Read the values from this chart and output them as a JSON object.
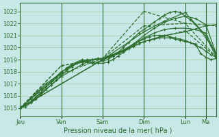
{
  "bg_color": "#c8e8e8",
  "grid_color": "#a0c8a0",
  "line_color": "#2d6e2d",
  "xlabel": "Pression niveau de la mer( hPa )",
  "ylim": [
    1014.3,
    1023.7
  ],
  "yticks": [
    1015,
    1016,
    1017,
    1018,
    1019,
    1020,
    1021,
    1022,
    1023
  ],
  "xtick_labels": [
    "Jeu",
    "Ven",
    "Sam",
    "Dim",
    "Lun",
    "Ma"
  ],
  "xtick_positions": [
    0,
    24,
    48,
    72,
    96,
    108
  ],
  "total_hours": 114,
  "series": [
    {
      "x": [
        0,
        3,
        6,
        9,
        12,
        15,
        18,
        21,
        24,
        27,
        30,
        33,
        36,
        39,
        42,
        45,
        48,
        51,
        54,
        57,
        60,
        63,
        66,
        69,
        72,
        75,
        78,
        81,
        84,
        87,
        90,
        93,
        96,
        99,
        102,
        105,
        108,
        111,
        114
      ],
      "y": [
        1015.0,
        1015.3,
        1015.8,
        1016.2,
        1016.6,
        1017.0,
        1017.3,
        1017.6,
        1018.0,
        1018.2,
        1018.5,
        1018.7,
        1018.9,
        1019.0,
        1019.0,
        1019.1,
        1019.1,
        1019.2,
        1019.3,
        1019.5,
        1019.7,
        1019.9,
        1020.1,
        1020.3,
        1020.5,
        1020.6,
        1020.7,
        1020.8,
        1020.8,
        1020.8,
        1020.7,
        1020.6,
        1020.5,
        1020.4,
        1020.3,
        1019.5,
        1019.2,
        1019.0,
        1019.1
      ],
      "dashed": false
    },
    {
      "x": [
        0,
        6,
        12,
        18,
        24,
        30,
        36,
        42,
        48,
        54,
        60,
        66,
        72,
        78,
        84,
        90,
        96,
        102,
        108,
        114
      ],
      "y": [
        1015.0,
        1015.5,
        1016.2,
        1016.9,
        1017.6,
        1018.1,
        1018.6,
        1019.0,
        1019.1,
        1019.4,
        1019.8,
        1020.3,
        1020.8,
        1021.2,
        1021.5,
        1021.6,
        1021.6,
        1021.5,
        1021.2,
        1019.4
      ],
      "dashed": false
    },
    {
      "x": [
        0,
        6,
        12,
        18,
        24,
        30,
        36,
        42,
        48,
        54,
        60,
        66,
        72,
        78,
        84,
        90,
        96,
        102,
        108,
        114
      ],
      "y": [
        1015.0,
        1015.7,
        1016.5,
        1017.2,
        1018.0,
        1018.5,
        1018.8,
        1019.0,
        1019.0,
        1019.3,
        1019.7,
        1020.3,
        1021.0,
        1021.6,
        1022.1,
        1022.4,
        1022.6,
        1022.4,
        1021.9,
        1019.5
      ],
      "dashed": false
    },
    {
      "x": [
        0,
        48,
        72,
        84,
        96,
        108,
        114
      ],
      "y": [
        1015.0,
        1019.0,
        1020.5,
        1021.0,
        1021.3,
        1021.8,
        1021.9
      ],
      "dashed": false
    },
    {
      "x": [
        0,
        48,
        72,
        84,
        96,
        108,
        114
      ],
      "y": [
        1015.0,
        1019.0,
        1021.3,
        1022.2,
        1022.9,
        1021.0,
        1019.2
      ],
      "dashed": false
    },
    {
      "x": [
        0,
        3,
        6,
        9,
        12,
        15,
        18,
        21,
        24,
        27,
        30,
        33,
        36,
        39,
        42,
        45,
        48,
        51,
        54,
        57,
        60,
        63,
        66,
        69,
        72,
        75,
        78,
        81,
        84,
        87,
        90,
        93,
        96,
        99,
        102,
        105,
        108,
        111,
        114
      ],
      "y": [
        1015.0,
        1015.2,
        1015.5,
        1015.9,
        1016.3,
        1016.7,
        1017.1,
        1017.5,
        1017.9,
        1018.3,
        1018.6,
        1018.8,
        1019.0,
        1018.9,
        1018.8,
        1018.8,
        1018.9,
        1019.0,
        1019.3,
        1019.6,
        1020.0,
        1020.4,
        1020.8,
        1021.2,
        1021.5,
        1021.8,
        1022.1,
        1022.4,
        1022.7,
        1022.9,
        1023.0,
        1022.9,
        1022.6,
        1022.3,
        1021.9,
        1021.4,
        1020.8,
        1020.2,
        1019.5
      ],
      "dashed": false
    },
    {
      "x": [
        0,
        3,
        6,
        9,
        12,
        15,
        18,
        21,
        24,
        27,
        30,
        33,
        36,
        39,
        42,
        45,
        48,
        51,
        54,
        57,
        60,
        63,
        66,
        69,
        72,
        75,
        78,
        81,
        84,
        87,
        90,
        93,
        96,
        99,
        102,
        105,
        108,
        111,
        114
      ],
      "y": [
        1015.0,
        1015.1,
        1015.4,
        1015.7,
        1016.1,
        1016.5,
        1016.9,
        1017.3,
        1017.7,
        1018.1,
        1018.4,
        1018.7,
        1018.9,
        1018.8,
        1018.7,
        1018.7,
        1018.7,
        1018.8,
        1019.0,
        1019.3,
        1019.6,
        1019.9,
        1020.2,
        1020.5,
        1020.7,
        1020.9,
        1021.0,
        1021.0,
        1021.0,
        1020.9,
        1020.8,
        1020.7,
        1020.6,
        1020.4,
        1020.2,
        1020.0,
        1019.7,
        1019.4,
        1019.2
      ],
      "dashed": false
    },
    {
      "x": [
        0,
        24,
        48,
        72,
        96,
        114
      ],
      "y": [
        1015.0,
        1017.8,
        1019.1,
        1021.8,
        1022.0,
        1021.8
      ],
      "dashed": true
    },
    {
      "x": [
        0,
        24,
        48,
        72,
        96,
        114
      ],
      "y": [
        1015.0,
        1018.5,
        1019.1,
        1020.5,
        1021.4,
        1019.2
      ],
      "dashed": true
    },
    {
      "x": [
        0,
        24,
        48,
        72,
        96,
        114
      ],
      "y": [
        1015.0,
        1018.5,
        1019.1,
        1023.0,
        1022.0,
        1019.2
      ],
      "dashed": true
    }
  ],
  "marker": "+",
  "markersize": 3,
  "linewidth": 0.9
}
